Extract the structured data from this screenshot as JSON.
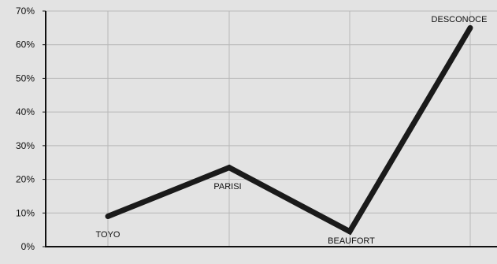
{
  "chart_data": {
    "type": "line",
    "categories": [
      "TOYO",
      "PARISI",
      "BEAUFORT",
      "DESCONOCE"
    ],
    "values": [
      0.09,
      0.235,
      0.045,
      0.65
    ],
    "ylim": [
      0,
      0.7
    ],
    "yticks": [
      0,
      0.1,
      0.2,
      0.3,
      0.4,
      0.5,
      0.6,
      0.7
    ],
    "ytick_labels": [
      "0%",
      "10%",
      "20%",
      "30%",
      "40%",
      "50%",
      "60%",
      "70%"
    ],
    "data_labels": [
      "TOYO",
      "PARISI",
      "BEAUFORT",
      "DESCONOCE"
    ],
    "title": "",
    "xlabel": "",
    "ylabel": "",
    "grid": true,
    "legend": "none",
    "colors": {
      "background": "#e3e3e3",
      "grid": "#b8b8b8",
      "line": "#1a1a1a",
      "axis": "#111111"
    }
  }
}
